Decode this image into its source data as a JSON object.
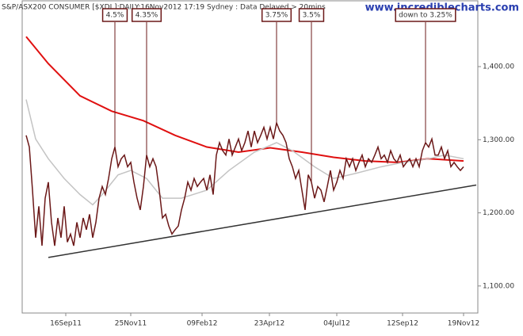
{
  "chart_data": {
    "type": "line",
    "title": "S&P/ASX200 CONSUMER [$XDJ ]:DAILY:16Nov2012 17:19 Sydney : Data Delayed > 20mins",
    "watermark": "www.incrediblecharts.com",
    "xlim": [
      -1.25,
      142.5
    ],
    "xticks": [
      {
        "value": 12.5,
        "label": "16Sep11"
      },
      {
        "value": 33,
        "label": "25Nov11"
      },
      {
        "value": 55.5,
        "label": "09Feb12"
      },
      {
        "value": 76.75,
        "label": "23Apr12"
      },
      {
        "value": 98,
        "label": "04Jul12"
      },
      {
        "value": 118.75,
        "label": "12Sep12"
      },
      {
        "value": 138,
        "label": "19Nov12"
      }
    ],
    "ylim": [
      1063,
      1490
    ],
    "yticks": [
      {
        "value": 1100,
        "label": "1,100.00"
      },
      {
        "value": 1200,
        "label": "1,200.00"
      },
      {
        "value": 1300,
        "label": "1,300.00"
      },
      {
        "value": 1400,
        "label": "1,400.00"
      }
    ],
    "series": [
      {
        "color": "#6b1818",
        "values": [
          1306,
          1290,
          1231,
          1166,
          1209,
          1155,
          1220,
          1242,
          1187,
          1155,
          1193,
          1166,
          1209,
          1160,
          1171,
          1155,
          1187,
          1166,
          1193,
          1177,
          1198,
          1166,
          1187,
          1220,
          1236,
          1225,
          1247,
          1274,
          1290,
          1263,
          1274,
          1279,
          1263,
          1269,
          1242,
          1220,
          1204,
          1236,
          1279,
          1263,
          1274,
          1263,
          1231,
          1193,
          1198,
          1182,
          1171,
          1177,
          1182,
          1204,
          1220,
          1242,
          1231,
          1247,
          1236,
          1242,
          1247,
          1231,
          1252,
          1225,
          1279,
          1296,
          1285,
          1279,
          1301,
          1279,
          1290,
          1301,
          1285,
          1296,
          1312,
          1290,
          1312,
          1296,
          1306,
          1317,
          1301,
          1317,
          1301,
          1323,
          1312,
          1306,
          1296,
          1274,
          1263,
          1247,
          1258,
          1231,
          1204,
          1252,
          1242,
          1220,
          1236,
          1231,
          1215,
          1236,
          1258,
          1231,
          1242,
          1258,
          1247,
          1274,
          1263,
          1274,
          1258,
          1269,
          1279,
          1263,
          1274,
          1269,
          1279,
          1290,
          1274,
          1279,
          1269,
          1285,
          1274,
          1269,
          1279,
          1263,
          1269,
          1274,
          1263,
          1274,
          1263,
          1285,
          1296,
          1290,
          1301,
          1279,
          1279,
          1290,
          1274,
          1285,
          1263,
          1269,
          1263,
          1258,
          1263
        ]
      },
      {
        "color": "#e01010",
        "x": [
          0,
          7,
          17,
          27,
          37,
          47,
          57,
          67,
          77,
          87,
          97,
          107,
          117,
          127,
          138
        ],
        "values": [
          1441,
          1404,
          1360,
          1339,
          1326,
          1306,
          1290,
          1283,
          1289,
          1283,
          1276,
          1271,
          1269,
          1274,
          1271
        ]
      },
      {
        "color": "#c4c4c4",
        "x": [
          0,
          3,
          7,
          12,
          17,
          21,
          24,
          29,
          33,
          38,
          43,
          49,
          57,
          64,
          72,
          79,
          84,
          91,
          97,
          104,
          112,
          119,
          127,
          132,
          138
        ],
        "values": [
          1355,
          1301,
          1274,
          1247,
          1225,
          1211,
          1225,
          1252,
          1258,
          1247,
          1220,
          1220,
          1231,
          1258,
          1283,
          1296,
          1285,
          1263,
          1247,
          1254,
          1263,
          1269,
          1274,
          1279,
          1274
        ]
      },
      {
        "color": "#333333",
        "x": [
          7,
          142
        ],
        "values": [
          1139,
          1238
        ]
      }
    ],
    "annotations": [
      {
        "x": 28,
        "text": "4.5%"
      },
      {
        "x": 38,
        "text": "4.35%"
      },
      {
        "x": 79,
        "text": "3.75%"
      },
      {
        "x": 90,
        "text": "3.5%"
      },
      {
        "x": 126,
        "text": "down to 3.25%"
      }
    ]
  }
}
